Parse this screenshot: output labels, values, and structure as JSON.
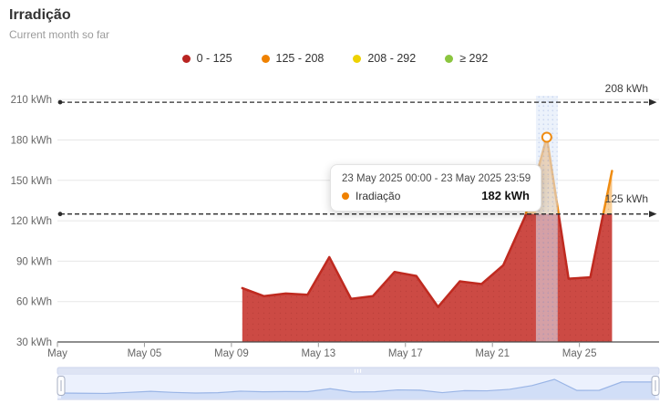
{
  "header": {
    "title": "Irradição",
    "subtitle": "Current month so far"
  },
  "legend": {
    "items": [
      {
        "label": "0 - 125",
        "color": "#b92421"
      },
      {
        "label": "125 - 208",
        "color": "#ef8100"
      },
      {
        "label": "208 - 292",
        "color": "#eed202"
      },
      {
        "label": "≥ 292",
        "color": "#8bc53f"
      }
    ]
  },
  "chart_data": {
    "type": "area",
    "title": "Irradição",
    "subtitle": "Current month so far",
    "unit": "kWh",
    "month": "May 2025",
    "series": [
      {
        "name": "Iradiação",
        "days": [
          9,
          10,
          11,
          12,
          13,
          14,
          15,
          16,
          17,
          18,
          19,
          20,
          21,
          22,
          23,
          24,
          25,
          26
        ],
        "values": [
          70,
          64,
          66,
          65,
          93,
          62,
          64,
          82,
          79,
          56,
          75,
          73,
          87,
          123,
          182,
          77,
          78,
          157
        ]
      }
    ],
    "xticks": [
      {
        "day": 1,
        "label": "May"
      },
      {
        "day": 5,
        "label": "May 05"
      },
      {
        "day": 9,
        "label": "May 09"
      },
      {
        "day": 13,
        "label": "May 13"
      },
      {
        "day": 17,
        "label": "May 17"
      },
      {
        "day": 21,
        "label": "May 21"
      },
      {
        "day": 25,
        "label": "May 25"
      }
    ],
    "yticks": [
      {
        "value": 30,
        "label": "30 kWh"
      },
      {
        "value": 60,
        "label": "60 kWh"
      },
      {
        "value": 90,
        "label": "90 kWh"
      },
      {
        "value": 120,
        "label": "120 kWh"
      },
      {
        "value": 150,
        "label": "150 kWh"
      },
      {
        "value": 180,
        "label": "180 kWh"
      },
      {
        "value": 210,
        "label": "210 kWh"
      }
    ],
    "ylim": [
      30,
      215
    ],
    "grid": true,
    "legend_position": "top",
    "thresholds": [
      {
        "value": 208,
        "label": "208 kWh"
      },
      {
        "value": 125,
        "label": "125 kWh"
      }
    ],
    "color_zones": [
      {
        "range": "0-125",
        "fill": "#cc4a44"
      },
      {
        "range": "125-208",
        "fill": "#f2993b"
      },
      {
        "range": "208-292",
        "fill": "#eed202"
      },
      {
        "range": "292+",
        "fill": "#8bc53f"
      }
    ],
    "highlighted_day": 23,
    "highlighted_value": 182
  },
  "tooltip": {
    "header": "23 May 2025 00:00 - 23 May 2025 23:59",
    "series_name": "Iradiação",
    "value": "182 kWh",
    "dot_color": "#ef8100"
  },
  "navigator": {
    "days": [
      1,
      2,
      3,
      4,
      5,
      6,
      7,
      8,
      9,
      10,
      11,
      12,
      13,
      14,
      15,
      16,
      17,
      18,
      19,
      20,
      21,
      22,
      23,
      24,
      25,
      26
    ],
    "values": [
      52,
      50,
      48,
      58,
      68,
      58,
      52,
      55,
      70,
      64,
      66,
      65,
      93,
      62,
      64,
      82,
      79,
      56,
      75,
      73,
      87,
      123,
      182,
      77,
      78,
      157
    ]
  },
  "colors": {
    "red_fill": "#cc4a44",
    "red_line": "#bf2a20",
    "orange_line": "#ef8c12",
    "orange_fill_top": "#f2993b",
    "orange_fill_bottom": "#f8d3a0",
    "grid": "#e7e7e7",
    "axis": "#4a4a4a",
    "tick_label": "#666666",
    "threshold": "#2b2b2b",
    "band": "#dce7f8",
    "nav_fill": "#ccdbf6",
    "nav_line": "#9ab5e6"
  }
}
